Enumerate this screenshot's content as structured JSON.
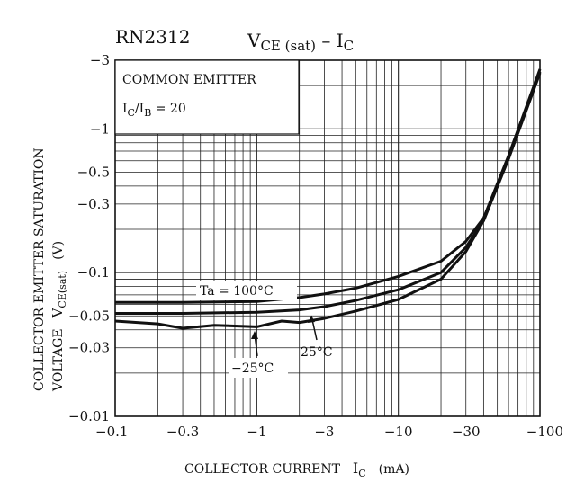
{
  "part_number": "RN2312",
  "title": {
    "main": "V",
    "sub": "CE (sat)",
    "sep": " – ",
    "main2": "I",
    "sub2": "C"
  },
  "legend": {
    "line1": "COMMON EMITTER",
    "line2_main": "I",
    "line2_sub1": "C",
    "line2_slash": "/I",
    "line2_sub2": "B",
    "line2_rest": " = 20"
  },
  "x_axis_label": {
    "text": "COLLECTOR CURRENT",
    "symbol": "I",
    "sub": "C",
    "unit": "(mA)"
  },
  "y_axis_label": {
    "line1": "COLLECTOR-EMITTER SATURATION",
    "line2": "VOLTAGE",
    "symbol": "V",
    "sub": "CE(sat)",
    "unit": "(V)"
  },
  "annotations": {
    "t100": "Ta = 100°C",
    "t25": "25°C",
    "tm25": "−25°C"
  },
  "chart_data": {
    "type": "line",
    "title": "VCE(sat) – IC",
    "xlabel": "COLLECTOR CURRENT IC (mA)",
    "ylabel": "COLLECTOR-EMITTER SATURATION VOLTAGE VCE(sat) (V)",
    "xscale": "log",
    "yscale": "log",
    "xlim": [
      0.1,
      100
    ],
    "ylim": [
      0.01,
      3
    ],
    "x_ticks": [
      0.1,
      0.3,
      1,
      3,
      10,
      30,
      100
    ],
    "x_tick_labels": [
      "−0.1",
      "−0.3",
      "−1",
      "−3",
      "−10",
      "−30",
      "−100"
    ],
    "y_ticks": [
      0.01,
      0.03,
      0.05,
      0.1,
      0.3,
      0.5,
      1,
      3
    ],
    "y_tick_labels": [
      "−0.01",
      "−0.03",
      "−0.05",
      "−0.1",
      "−0.3",
      "−0.5",
      "−1",
      "−3"
    ],
    "grid": true,
    "series": [
      {
        "name": "Ta = 100°C",
        "x": [
          0.1,
          0.3,
          1,
          2,
          3,
          5,
          10,
          20,
          30,
          40,
          60,
          100
        ],
        "y": [
          0.062,
          0.062,
          0.063,
          0.067,
          0.071,
          0.078,
          0.094,
          0.12,
          0.165,
          0.24,
          0.65,
          2.6
        ]
      },
      {
        "name": "25°C",
        "x": [
          0.1,
          0.3,
          1,
          2,
          3,
          5,
          10,
          20,
          30,
          40,
          60,
          100
        ],
        "y": [
          0.052,
          0.052,
          0.053,
          0.055,
          0.058,
          0.064,
          0.076,
          0.1,
          0.15,
          0.23,
          0.62,
          2.5
        ]
      },
      {
        "name": "−25°C",
        "x": [
          0.1,
          0.2,
          0.3,
          0.5,
          1,
          1.5,
          2,
          3,
          5,
          10,
          20,
          30,
          40,
          60,
          100
        ],
        "y": [
          0.046,
          0.044,
          0.041,
          0.043,
          0.042,
          0.046,
          0.045,
          0.048,
          0.054,
          0.065,
          0.09,
          0.14,
          0.23,
          0.62,
          2.45
        ]
      }
    ]
  }
}
